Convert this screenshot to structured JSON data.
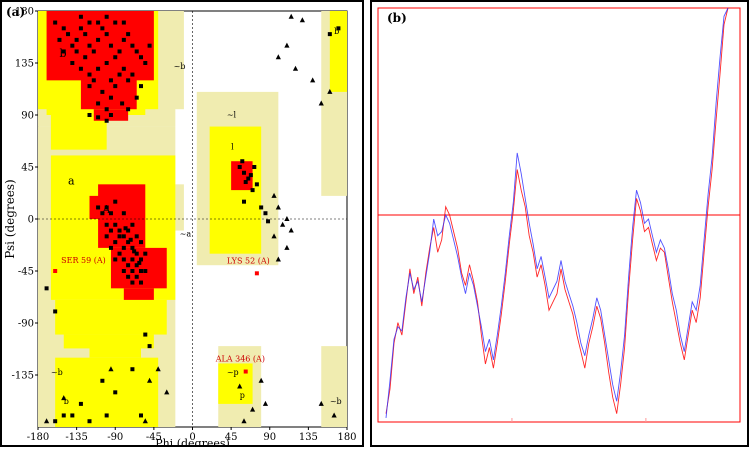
{
  "chart_data": [
    {
      "type": "scatter",
      "panel_label": "(a)",
      "xlabel": "Phi (degrees)",
      "ylabel": "Psi (degrees)",
      "xlim": [
        -180,
        180
      ],
      "ylim": [
        -180,
        180
      ],
      "xticks": [
        "-180",
        "-135",
        "-90",
        "-45",
        "0",
        "45",
        "90",
        "135",
        "180"
      ],
      "yticks": [
        "180",
        "135",
        "90",
        "45",
        "0",
        "-45",
        "-90",
        "-135"
      ],
      "region_labels": [
        "b",
        "A",
        "a",
        "~b",
        "~a",
        "~l",
        "l",
        "~p",
        "p",
        "~b",
        "b",
        "~b",
        "b"
      ],
      "annotations": [
        {
          "label": "SER 59 (A)",
          "x": -160,
          "y": -45
        },
        {
          "label": "LYS 52 (A)",
          "x": 75,
          "y": -47
        },
        {
          "label": "ALA 346 (A)",
          "x": 62,
          "y": -132
        }
      ],
      "series": [
        {
          "marker": "square",
          "points": [
            [
              -160,
              170
            ],
            [
              -150,
              165
            ],
            [
              -145,
              160
            ],
            [
              -140,
              150
            ],
            [
              -135,
              155
            ],
            [
              -130,
              165
            ],
            [
              -125,
              160
            ],
            [
              -120,
              150
            ],
            [
              -115,
              145
            ],
            [
              -110,
              155
            ],
            [
              -105,
              165
            ],
            [
              -100,
              160
            ],
            [
              -95,
              150
            ],
            [
              -90,
              140
            ],
            [
              -85,
              145
            ],
            [
              -80,
              155
            ],
            [
              -75,
              160
            ],
            [
              -70,
              150
            ],
            [
              -65,
              145
            ],
            [
              -60,
              140
            ],
            [
              -140,
              135
            ],
            [
              -130,
              130
            ],
            [
              -120,
              125
            ],
            [
              -110,
              130
            ],
            [
              -100,
              135
            ],
            [
              -95,
              120
            ],
            [
              -90,
              115
            ],
            [
              -85,
              125
            ],
            [
              -80,
              130
            ],
            [
              -75,
              120
            ],
            [
              -70,
              125
            ],
            [
              -105,
              110
            ],
            [
              -110,
              100
            ],
            [
              -100,
              95
            ],
            [
              -95,
              105
            ],
            [
              -120,
              115
            ],
            [
              -115,
              120
            ],
            [
              -125,
              140
            ],
            [
              -135,
              145
            ],
            [
              -150,
              145
            ],
            [
              -155,
              155
            ],
            [
              -100,
              175
            ],
            [
              -90,
              170
            ],
            [
              -80,
              170
            ],
            [
              -110,
              170
            ],
            [
              -120,
              170
            ],
            [
              -130,
              175
            ],
            [
              -95,
              90
            ],
            [
              -110,
              88
            ],
            [
              -100,
              85
            ],
            [
              -120,
              90
            ],
            [
              -75,
              95
            ],
            [
              -82,
              100
            ],
            [
              -60,
              115
            ],
            [
              -55,
              135
            ],
            [
              -65,
              105
            ],
            [
              -50,
              150
            ],
            [
              -100,
              10
            ],
            [
              -95,
              5
            ],
            [
              -90,
              -5
            ],
            [
              -85,
              -10
            ],
            [
              -80,
              -15
            ],
            [
              -75,
              -20
            ],
            [
              -70,
              -25
            ],
            [
              -65,
              -30
            ],
            [
              -60,
              -35
            ],
            [
              -90,
              -20
            ],
            [
              -85,
              -30
            ],
            [
              -80,
              -35
            ],
            [
              -75,
              -40
            ],
            [
              -70,
              -45
            ],
            [
              -65,
              -40
            ],
            [
              -60,
              -45
            ],
            [
              -55,
              -30
            ],
            [
              -75,
              -10
            ],
            [
              -70,
              -5
            ],
            [
              -65,
              -15
            ],
            [
              -60,
              -20
            ],
            [
              -80,
              -25
            ],
            [
              -85,
              -15
            ],
            [
              -95,
              -10
            ],
            [
              -100,
              -5
            ],
            [
              -105,
              5
            ],
            [
              -110,
              10
            ],
            [
              -90,
              15
            ],
            [
              -80,
              5
            ],
            [
              -70,
              -35
            ],
            [
              -65,
              -50
            ],
            [
              -60,
              -55
            ],
            [
              -70,
              -55
            ],
            [
              -75,
              -50
            ],
            [
              -80,
              -45
            ],
            [
              -90,
              -35
            ],
            [
              -95,
              -25
            ],
            [
              -100,
              -15
            ],
            [
              -55,
              -45
            ],
            [
              -62,
              -38
            ],
            [
              -68,
              -28
            ],
            [
              -72,
              -18
            ],
            [
              -78,
              -8
            ],
            [
              -160,
              -80
            ],
            [
              -170,
              -60
            ],
            [
              -140,
              -170
            ],
            [
              -150,
              -170
            ],
            [
              -160,
              -175
            ],
            [
              -105,
              -140
            ],
            [
              -55,
              -100
            ],
            [
              -50,
              -110
            ],
            [
              -70,
              -130
            ],
            [
              -90,
              -150
            ],
            [
              -100,
              -170
            ],
            [
              -120,
              -175
            ],
            [
              -60,
              -170
            ],
            [
              -130,
              -160
            ],
            [
              55,
              45
            ],
            [
              60,
              40
            ],
            [
              65,
              35
            ],
            [
              62,
              32
            ],
            [
              68,
              38
            ],
            [
              58,
              50
            ],
            [
              70,
              25
            ],
            [
              75,
              30
            ],
            [
              80,
              10
            ],
            [
              85,
              5
            ],
            [
              88,
              -2
            ],
            [
              60,
              15
            ],
            [
              72,
              45
            ],
            [
              160,
              160
            ],
            [
              170,
              165
            ]
          ]
        },
        {
          "marker": "triangle",
          "points": [
            [
              115,
              175
            ],
            [
              128,
              172
            ],
            [
              110,
              150
            ],
            [
              100,
              140
            ],
            [
              120,
              130
            ],
            [
              140,
              120
            ],
            [
              160,
              110
            ],
            [
              150,
              100
            ],
            [
              95,
              20
            ],
            [
              100,
              10
            ],
            [
              105,
              -5
            ],
            [
              110,
              0
            ],
            [
              115,
              -10
            ],
            [
              95,
              -15
            ],
            [
              110,
              -25
            ],
            [
              100,
              -35
            ],
            [
              -95,
              -130
            ],
            [
              -50,
              -140
            ],
            [
              -150,
              -155
            ],
            [
              -30,
              -150
            ],
            [
              -40,
              -130
            ],
            [
              80,
              -140
            ],
            [
              85,
              -160
            ],
            [
              70,
              -165
            ],
            [
              55,
              -145
            ],
            [
              60,
              -175
            ],
            [
              150,
              -160
            ],
            [
              165,
              -170
            ],
            [
              -55,
              -175
            ],
            [
              -170,
              -175
            ]
          ]
        }
      ]
    },
    {
      "type": "line",
      "panel_label": "(b)",
      "ylim": [
        -5,
        5
      ],
      "reference_lines": [
        0
      ],
      "series": [
        {
          "color": "#ff0000",
          "values": [
            -4.8,
            -4.2,
            -3.1,
            -2.6,
            -2.9,
            -2.1,
            -1.3,
            -1.9,
            -1.5,
            -2.2,
            -1.4,
            -0.8,
            -0.3,
            -0.9,
            -0.6,
            0.2,
            0.0,
            -0.4,
            -0.8,
            -1.4,
            -1.7,
            -1.2,
            -1.6,
            -2.1,
            -2.9,
            -3.6,
            -3.2,
            -3.7,
            -3.1,
            -2.4,
            -1.6,
            -0.7,
            0.1,
            1.1,
            0.6,
            0.2,
            -0.5,
            -0.9,
            -1.5,
            -1.2,
            -1.7,
            -2.3,
            -2.1,
            -1.9,
            -1.3,
            -1.8,
            -2.1,
            -2.4,
            -2.9,
            -3.3,
            -3.7,
            -3.1,
            -2.7,
            -2.2,
            -2.5,
            -3.1,
            -3.8,
            -4.4,
            -4.8,
            -4.1,
            -3.2,
            -1.8,
            -0.6,
            0.4,
            0.1,
            -0.4,
            -0.3,
            -0.7,
            -1.1,
            -0.8,
            -0.9,
            -1.5,
            -2.1,
            -2.6,
            -3.1,
            -3.5,
            -2.9,
            -2.3,
            -2.6,
            -2.0,
            -0.9,
            0.2,
            1.1,
            2.3,
            3.4,
            4.6,
            5.0
          ]
        },
        {
          "color": "#3333ff",
          "values": [
            -4.9,
            -4.0,
            -3.0,
            -2.7,
            -2.8,
            -2.0,
            -1.4,
            -1.8,
            -1.6,
            -2.1,
            -1.5,
            -0.9,
            -0.1,
            -0.5,
            -0.4,
            0.0,
            -0.2,
            -0.6,
            -1.0,
            -1.5,
            -1.9,
            -1.4,
            -1.7,
            -2.2,
            -2.7,
            -3.3,
            -3.0,
            -3.5,
            -2.9,
            -2.2,
            -1.4,
            -0.5,
            0.3,
            1.5,
            1.0,
            0.4,
            -0.2,
            -0.7,
            -1.3,
            -1.0,
            -1.5,
            -2.0,
            -1.8,
            -1.6,
            -1.1,
            -1.6,
            -1.9,
            -2.2,
            -2.6,
            -3.1,
            -3.4,
            -2.9,
            -2.5,
            -2.0,
            -2.3,
            -2.9,
            -3.5,
            -4.1,
            -4.5,
            -3.8,
            -2.9,
            -1.5,
            -0.3,
            0.6,
            0.3,
            -0.2,
            -0.1,
            -0.5,
            -0.9,
            -0.6,
            -0.8,
            -1.3,
            -1.9,
            -2.3,
            -2.9,
            -3.3,
            -2.7,
            -2.1,
            -2.3,
            -1.7,
            -0.6,
            0.5,
            1.4,
            2.7,
            3.8,
            4.8,
            5.0
          ]
        }
      ]
    }
  ]
}
